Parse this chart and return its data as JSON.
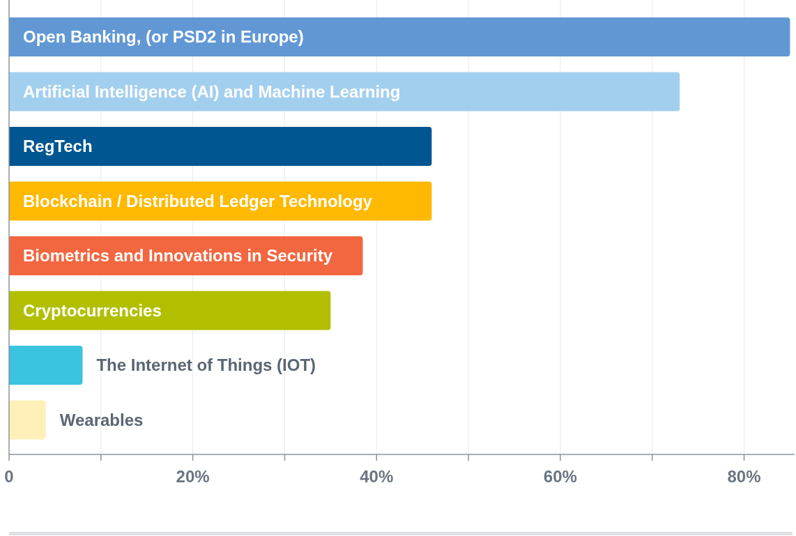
{
  "chart_data": {
    "type": "bar",
    "orientation": "horizontal",
    "categories": [
      "Open Banking, (or PSD2 in Europe)",
      "Artificial Intelligence (AI) and Machine Learning",
      "RegTech",
      "Blockchain / Distributed Ledger Technology",
      "Biometrics and Innovations in Security",
      "Cryptocurrencies",
      "The Internet of Things (IOT)",
      "Wearables"
    ],
    "values": [
      85,
      73,
      46,
      46,
      38.5,
      35,
      8,
      4
    ],
    "colors": [
      "#6198d4",
      "#a3cfee",
      "#005691",
      "#ffb900",
      "#f26640",
      "#b2bf00",
      "#3bc4e0",
      "#fff0b9"
    ],
    "xlim": [
      0,
      85.5
    ],
    "xticks": [
      {
        "value": 0,
        "label": "0"
      },
      {
        "value": 10,
        "label": null
      },
      {
        "value": 20,
        "label": "20%"
      },
      {
        "value": 30,
        "label": null
      },
      {
        "value": 40,
        "label": "40%"
      },
      {
        "value": 50,
        "label": null
      },
      {
        "value": 60,
        "label": "60%"
      },
      {
        "value": 70,
        "label": null
      },
      {
        "value": 80,
        "label": "80%"
      }
    ],
    "grid": "x"
  }
}
